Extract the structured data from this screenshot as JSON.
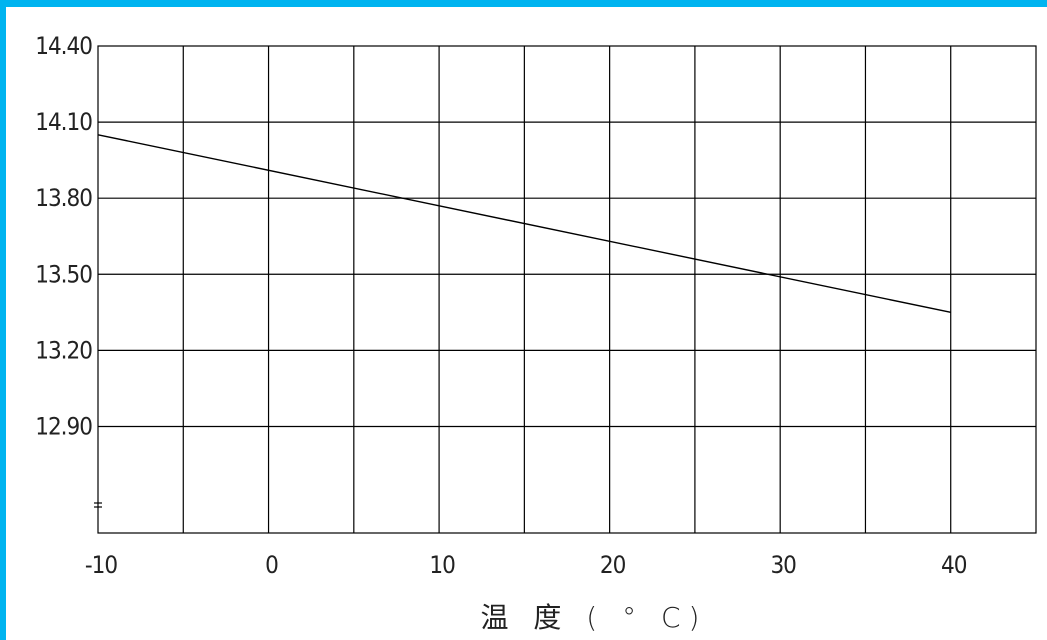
{
  "chart_data": {
    "type": "line",
    "title": "",
    "xlabel": "温 度 ( ° C)",
    "ylabel": "",
    "x_ticks": [
      -10,
      0,
      10,
      20,
      30,
      40
    ],
    "x_tick_labels": [
      "-10",
      "0",
      "10",
      "20",
      "30",
      "40"
    ],
    "y_ticks": [
      14.4,
      14.1,
      13.8,
      13.5,
      13.2,
      12.9
    ],
    "y_tick_labels": [
      "14.40",
      "14.10",
      "13.80",
      "13.50",
      "13.20",
      "12.90"
    ],
    "xlim": [
      -10,
      45
    ],
    "ylim": [
      12.48,
      14.4
    ],
    "grid": true,
    "series": [
      {
        "x": [
          -10,
          40
        ],
        "y": [
          14.05,
          13.35
        ]
      }
    ],
    "colors": {
      "line": "#000000",
      "grid": "#000000",
      "frame_border": "#00b4f0"
    }
  }
}
